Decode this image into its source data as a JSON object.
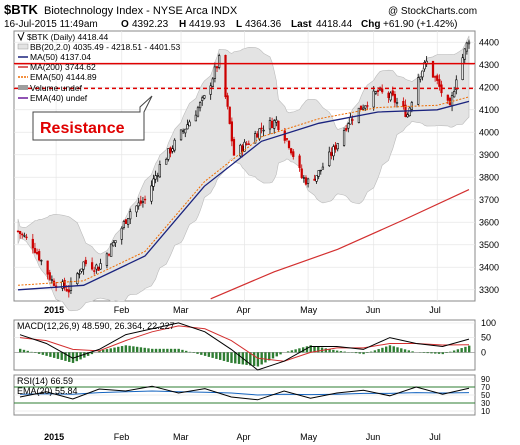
{
  "header": {
    "symbol": "$BTK",
    "name": "Biotechnology Index - NYSE Arca INDX",
    "watermark": "@ StockCharts.com",
    "quote": {
      "date_time": "16-Jul-2015 11:49am",
      "open_label": "O",
      "open": "4392.23",
      "high_label": "H",
      "high": "4419.93",
      "low_label": "L",
      "low": "4364.36",
      "last_label": "Last",
      "last": "4418.44",
      "chg_label": "Chg",
      "chg": "+61.90 (+1.42%)"
    }
  },
  "legend": {
    "price": "$BTK (Daily) 4418.44",
    "bb": "BB(20,2.0) 4035.49 - 4218.51 - 4401.53",
    "ma50": "MA(50) 4137.04",
    "ma200": "MA(200) 3744.62",
    "ema50": "EMA(50) 4144.89",
    "volume": "Volume undef",
    "ema40": "EMA(40) undef"
  },
  "annotation": {
    "text": "Resistance"
  },
  "colors": {
    "up": "#000000",
    "down": "#cc0000",
    "ma50": "#1a237e",
    "ma200": "#d32f2f",
    "ema50": "#ef6c00",
    "bb_fill": "#e3e3e3",
    "resistance_solid": "#e00000",
    "resistance_dashed": "#e00000",
    "macd": "#000000",
    "macd_signal": "#d32f2f",
    "histogram": "#2e7d32",
    "rsi": "#000000",
    "rsi_ema": "#1565c0"
  },
  "chart_data": [
    {
      "type": "candlestick",
      "title": "$BTK (Daily) 4418.44",
      "x_tick_labels": [
        "2015",
        "Feb",
        "Mar",
        "Apr",
        "May",
        "Jun",
        "Jul"
      ],
      "x_tick_dates": [
        "2015-01-02",
        "2015-02-02",
        "2015-03-02",
        "2015-04-01",
        "2015-05-01",
        "2015-06-01",
        "2015-07-01"
      ],
      "date_range": [
        "2014-12-15",
        "2015-07-16"
      ],
      "ylim": [
        3250,
        4450
      ],
      "y_ticks": [
        3300,
        3400,
        3500,
        3600,
        3700,
        3800,
        3900,
        4000,
        4100,
        4200,
        4300,
        4400
      ],
      "resistance_levels": [
        {
          "value": 4305,
          "style": "solid"
        },
        {
          "value": 4195,
          "style": "dashed"
        }
      ],
      "close_path": [
        [
          "2014-12-15",
          3560
        ],
        [
          "2014-12-22",
          3500
        ],
        [
          "2014-12-31",
          3340
        ],
        [
          "2015-01-08",
          3300
        ],
        [
          "2015-01-15",
          3420
        ],
        [
          "2015-01-22",
          3400
        ],
        [
          "2015-01-30",
          3520
        ],
        [
          "2015-02-06",
          3650
        ],
        [
          "2015-02-13",
          3700
        ],
        [
          "2015-02-20",
          3850
        ],
        [
          "2015-02-27",
          3950
        ],
        [
          "2015-03-06",
          4050
        ],
        [
          "2015-03-13",
          4150
        ],
        [
          "2015-03-20",
          4320
        ],
        [
          "2015-03-24",
          4100
        ],
        [
          "2015-03-27",
          3900
        ],
        [
          "2015-04-02",
          3950
        ],
        [
          "2015-04-09",
          4020
        ],
        [
          "2015-04-16",
          4050
        ],
        [
          "2015-04-22",
          3950
        ],
        [
          "2015-04-28",
          3800
        ],
        [
          "2015-05-01",
          3780
        ],
        [
          "2015-05-06",
          3820
        ],
        [
          "2015-05-13",
          3920
        ],
        [
          "2015-05-20",
          4050
        ],
        [
          "2015-05-27",
          4120
        ],
        [
          "2015-06-03",
          4180
        ],
        [
          "2015-06-10",
          4150
        ],
        [
          "2015-06-17",
          4080
        ],
        [
          "2015-06-22",
          4250
        ],
        [
          "2015-06-26",
          4310
        ],
        [
          "2015-07-01",
          4220
        ],
        [
          "2015-07-07",
          4100
        ],
        [
          "2015-07-10",
          4250
        ],
        [
          "2015-07-14",
          4360
        ],
        [
          "2015-07-16",
          4418
        ]
      ],
      "ma50_path": [
        [
          "2014-12-15",
          3300
        ],
        [
          "2015-01-15",
          3320
        ],
        [
          "2015-02-13",
          3450
        ],
        [
          "2015-03-13",
          3760
        ],
        [
          "2015-04-09",
          3960
        ],
        [
          "2015-05-06",
          4040
        ],
        [
          "2015-06-03",
          4090
        ],
        [
          "2015-07-01",
          4100
        ],
        [
          "2015-07-16",
          4137
        ]
      ],
      "ma200_path": [
        [
          "2015-03-16",
          3260
        ],
        [
          "2015-04-15",
          3380
        ],
        [
          "2015-05-15",
          3480
        ],
        [
          "2015-06-15",
          3610
        ],
        [
          "2015-07-16",
          3745
        ]
      ]
    },
    {
      "type": "line",
      "title": "MACD(12,26,9) 48.590, 26.364, 22.227",
      "series": [
        {
          "name": "MACD",
          "values": [
            60,
            30,
            -20,
            10,
            60,
            80,
            100,
            70,
            10,
            -60,
            -30,
            20,
            20,
            10,
            50,
            30,
            20,
            45
          ]
        },
        {
          "name": "Signal",
          "values": [
            50,
            40,
            10,
            5,
            40,
            70,
            90,
            80,
            40,
            -20,
            -30,
            0,
            15,
            15,
            30,
            30,
            25,
            26
          ]
        }
      ],
      "ylim": [
        -60,
        110
      ],
      "y_ticks": [
        0,
        50,
        100
      ]
    },
    {
      "type": "line",
      "title": "RSI(14) 66.59",
      "series": [
        {
          "name": "RSI(14)",
          "values": [
            45,
            58,
            40,
            65,
            60,
            72,
            55,
            66,
            45,
            38,
            60,
            42,
            55,
            62,
            48,
            70,
            52,
            67
          ]
        },
        {
          "name": "EMA(20)",
          "values": [
            52,
            53,
            52,
            56,
            58,
            60,
            58,
            57,
            55,
            50,
            52,
            51,
            52,
            54,
            54,
            56,
            55,
            56
          ]
        }
      ],
      "ylim": [
        0,
        100
      ],
      "y_ticks": [
        10,
        30,
        50,
        70,
        90
      ],
      "reference_lines": [
        70,
        30
      ]
    }
  ],
  "axis": {
    "month_labels": [
      "2015",
      "Feb",
      "Mar",
      "Apr",
      "May",
      "Jun",
      "Jul"
    ],
    "price_ticks": [
      "4400",
      "4300",
      "4200",
      "4100",
      "4000",
      "3900",
      "3800",
      "3700",
      "3600",
      "3500",
      "3400",
      "3300"
    ],
    "macd_ticks": [
      "100",
      "50",
      "0"
    ],
    "rsi_ticks": [
      "90",
      "70",
      "50",
      "30",
      "10"
    ]
  },
  "panels": {
    "macd_title": "MACD(12,26,9) 48.590, 26.364, 22.227",
    "rsi_title": "RSI(14) 66.59",
    "rsi_ema_title": "EMA(20) 55.84"
  }
}
